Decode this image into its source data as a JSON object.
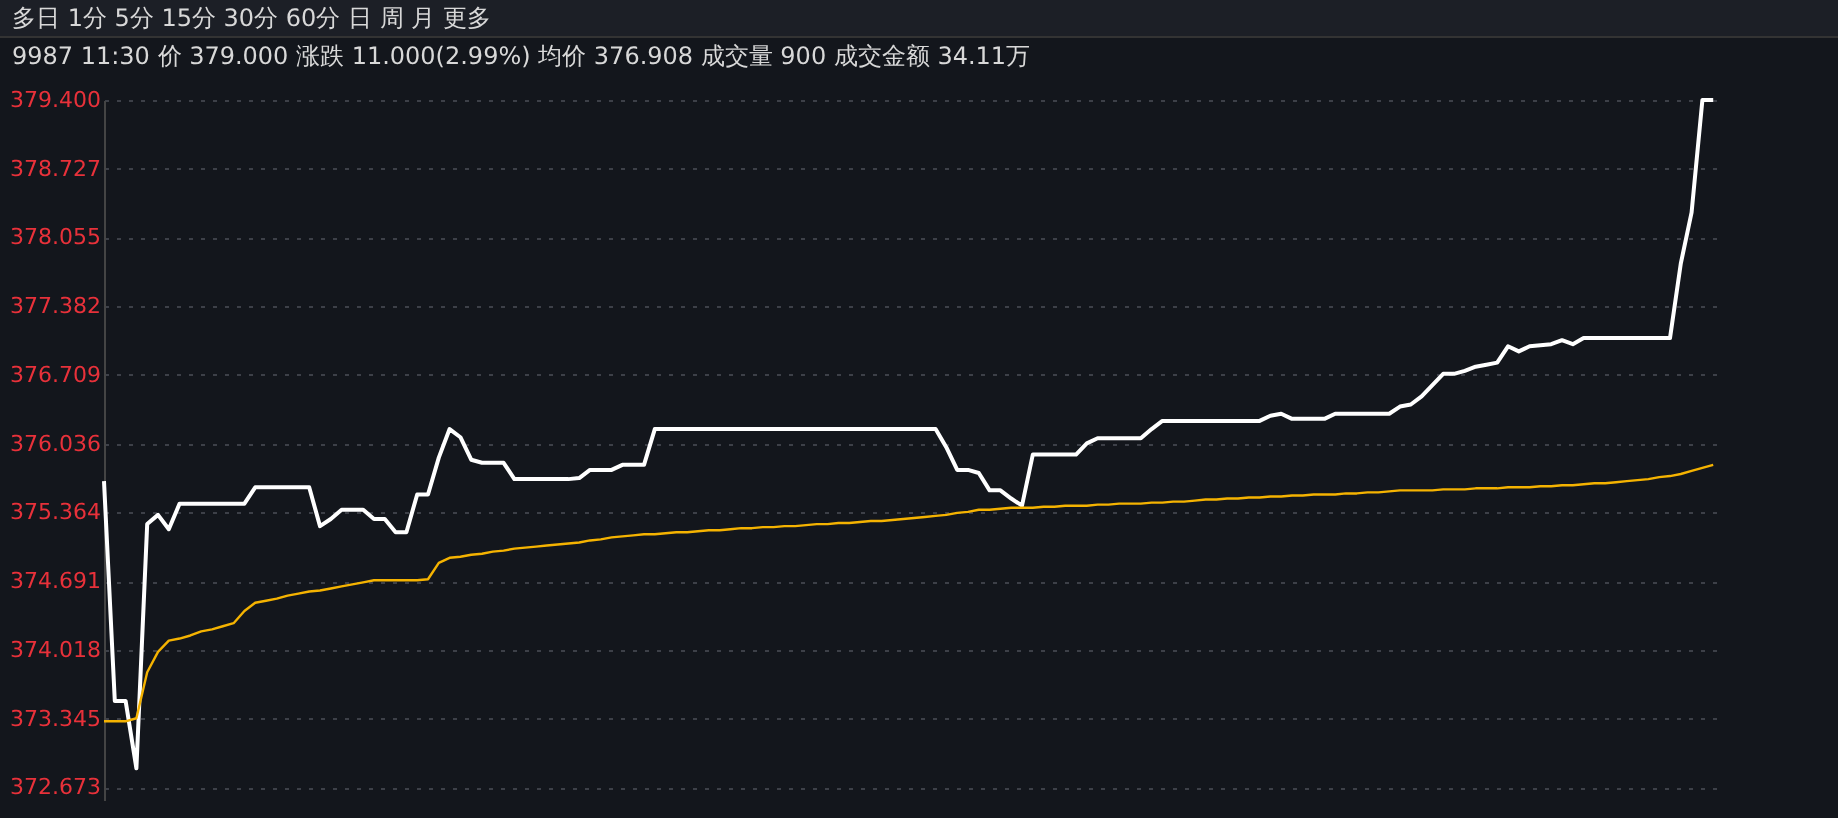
{
  "chart_data": {
    "type": "line",
    "annotations": [
      "多日 1分 5分 15分 30分 60分 日 周 月 更多",
      "9987 11:30 价 379.000 涨跌 11.000(2.99%) 均价 376.908 成交量 900 成交金额 34.11万"
    ],
    "categories": [
      null,
      null,
      null,
      null,
      null,
      null,
      null,
      null,
      null,
      null,
      null,
      null,
      null,
      null,
      null,
      null,
      null,
      null,
      null,
      null,
      null,
      null,
      null,
      null,
      null,
      null,
      null,
      null,
      null,
      null,
      null,
      null,
      null,
      null,
      null,
      null,
      null,
      null,
      null,
      null,
      null,
      null,
      null,
      null,
      null,
      null,
      null,
      null,
      null,
      null,
      null,
      null,
      null,
      null,
      null,
      null,
      null,
      null,
      null,
      null,
      null,
      null,
      null,
      null,
      null,
      null,
      null,
      null,
      null,
      null,
      null,
      null,
      null,
      null,
      null,
      null,
      null,
      null,
      null,
      null,
      null,
      null,
      null,
      null,
      null,
      null,
      null,
      null,
      null,
      null,
      null,
      null,
      null,
      null,
      null,
      null,
      null,
      null,
      null,
      null,
      null,
      null,
      null,
      null,
      null,
      null,
      null,
      null,
      null,
      null,
      null,
      null,
      null,
      null,
      null,
      null,
      null,
      null,
      null,
      null,
      null,
      null,
      null,
      null,
      null,
      null,
      null,
      null,
      null,
      null,
      null,
      null,
      null,
      null,
      null,
      null,
      null,
      null,
      null,
      null,
      null,
      null,
      null,
      null,
      null,
      null,
      null,
      null,
      null,
      null,
      null
    ],
    "series": [
      {
        "color": "#ffffff",
        "values": [
          375.67,
          373.52,
          373.52,
          372.86,
          375.25,
          375.34,
          375.2,
          375.45,
          375.45,
          375.45,
          375.45,
          375.45,
          375.45,
          375.45,
          375.61,
          375.61,
          375.61,
          375.61,
          375.61,
          375.61,
          375.23,
          375.3,
          375.39,
          375.39,
          375.39,
          375.3,
          375.3,
          375.17,
          375.17,
          375.54,
          375.54,
          375.9,
          376.18,
          376.1,
          375.88,
          375.85,
          375.85,
          375.85,
          375.69,
          375.69,
          375.69,
          375.69,
          375.69,
          375.69,
          375.7,
          375.78,
          375.78,
          375.78,
          375.83,
          375.83,
          375.83,
          376.18,
          376.18,
          376.18,
          376.18,
          376.18,
          376.18,
          376.18,
          376.18,
          376.18,
          376.18,
          376.18,
          376.18,
          376.18,
          376.18,
          376.18,
          376.18,
          376.18,
          376.18,
          376.18,
          376.18,
          376.18,
          376.18,
          376.18,
          376.18,
          376.18,
          376.18,
          376.18,
          376.0,
          375.78,
          375.78,
          375.75,
          375.58,
          375.58,
          375.5,
          375.43,
          375.93,
          375.93,
          375.93,
          375.93,
          375.93,
          376.04,
          376.09,
          376.09,
          376.09,
          376.09,
          376.09,
          376.18,
          376.26,
          376.26,
          376.26,
          376.26,
          376.26,
          376.26,
          376.26,
          376.26,
          376.26,
          376.26,
          376.31,
          376.33,
          376.28,
          376.28,
          376.28,
          376.28,
          376.33,
          376.33,
          376.33,
          376.33,
          376.33,
          376.33,
          376.4,
          376.42,
          376.5,
          376.61,
          376.72,
          376.72,
          376.75,
          376.79,
          376.81,
          376.83,
          376.99,
          376.94,
          376.99,
          377.0,
          377.01,
          377.05,
          377.01,
          377.07,
          377.07,
          377.07,
          377.07,
          377.07,
          377.07,
          377.07,
          377.07,
          377.07,
          377.8,
          378.3,
          379.4,
          379.4,
          null
        ]
      },
      {
        "color": "#f5b301",
        "values": [
          373.32,
          373.32,
          373.32,
          373.35,
          373.8,
          374.0,
          374.11,
          374.13,
          374.16,
          374.2,
          374.22,
          374.25,
          374.28,
          374.4,
          374.48,
          374.5,
          374.52,
          374.55,
          374.57,
          374.59,
          374.6,
          374.62,
          374.64,
          374.66,
          374.68,
          374.7,
          374.7,
          374.7,
          374.7,
          374.7,
          374.71,
          374.87,
          374.92,
          374.93,
          374.95,
          374.96,
          374.98,
          374.99,
          375.01,
          375.02,
          375.03,
          375.04,
          375.05,
          375.06,
          375.07,
          375.09,
          375.1,
          375.12,
          375.13,
          375.14,
          375.15,
          375.15,
          375.16,
          375.17,
          375.17,
          375.18,
          375.19,
          375.19,
          375.2,
          375.21,
          375.21,
          375.22,
          375.22,
          375.23,
          375.23,
          375.24,
          375.25,
          375.25,
          375.26,
          375.26,
          375.27,
          375.28,
          375.28,
          375.29,
          375.3,
          375.31,
          375.32,
          375.33,
          375.34,
          375.36,
          375.37,
          375.39,
          375.39,
          375.4,
          375.41,
          375.41,
          375.41,
          375.42,
          375.42,
          375.43,
          375.43,
          375.43,
          375.44,
          375.44,
          375.45,
          375.45,
          375.45,
          375.46,
          375.46,
          375.47,
          375.47,
          375.48,
          375.49,
          375.49,
          375.5,
          375.5,
          375.51,
          375.51,
          375.52,
          375.52,
          375.53,
          375.53,
          375.54,
          375.54,
          375.54,
          375.55,
          375.55,
          375.56,
          375.56,
          375.57,
          375.58,
          375.58,
          375.58,
          375.58,
          375.59,
          375.59,
          375.59,
          375.6,
          375.6,
          375.6,
          375.61,
          375.61,
          375.61,
          375.62,
          375.62,
          375.63,
          375.63,
          375.64,
          375.65,
          375.65,
          375.66,
          375.67,
          375.68,
          375.69,
          375.71,
          375.72,
          375.74,
          375.77,
          375.8,
          375.83,
          null
        ]
      }
    ],
    "ylim": [
      372.55,
      379.4
    ],
    "yticks": [
      {
        "value": 379.4,
        "label": "379.400"
      },
      {
        "value": 378.727,
        "label": "378.727"
      },
      {
        "value": 378.055,
        "label": "378.055"
      },
      {
        "value": 377.382,
        "label": "377.382"
      },
      {
        "value": 376.709,
        "label": "376.709"
      },
      {
        "value": 376.036,
        "label": "376.036"
      },
      {
        "value": 375.364,
        "label": "375.364"
      },
      {
        "value": 374.691,
        "label": "374.691"
      },
      {
        "value": 374.018,
        "label": "374.018"
      },
      {
        "value": 373.345,
        "label": "373.345"
      },
      {
        "value": 372.673,
        "label": "372.673"
      }
    ],
    "grid": "y",
    "tick_labels": "y"
  }
}
